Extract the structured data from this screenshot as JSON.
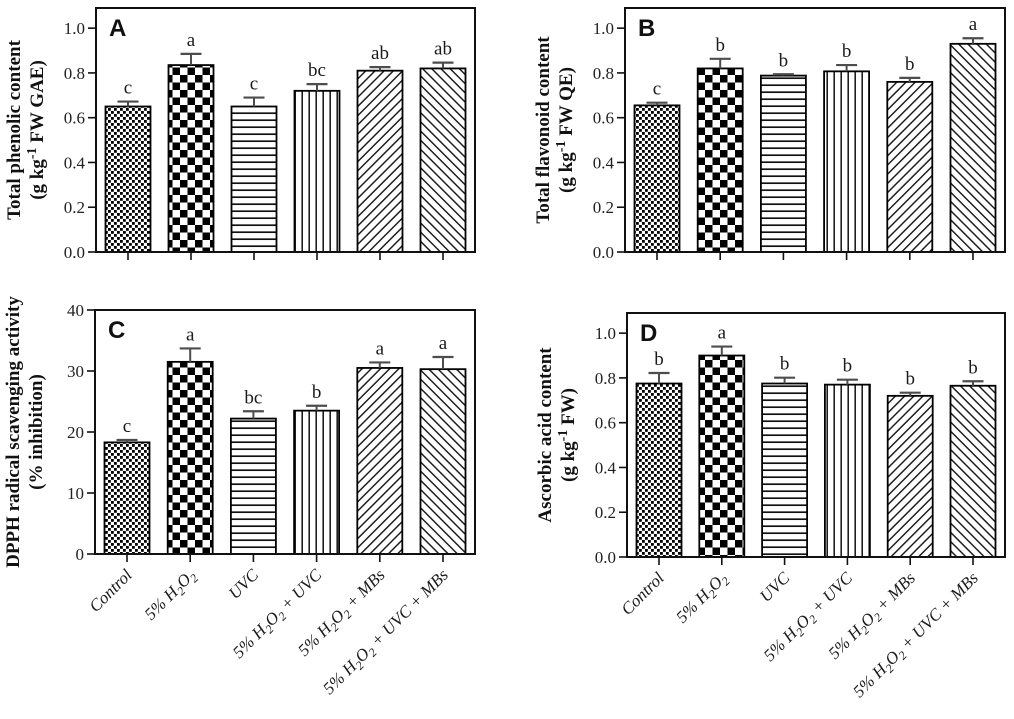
{
  "figure": {
    "background": "#ffffff",
    "categories": [
      {
        "key": "control",
        "text": "Control",
        "segments": [
          {
            "t": "Control"
          }
        ]
      },
      {
        "key": "5pct-h2o2",
        "text": "5% H₂O₂",
        "segments": [
          {
            "t": "5% H"
          },
          {
            "t": "2",
            "sub": true
          },
          {
            "t": "O"
          },
          {
            "t": "2",
            "sub": true
          }
        ]
      },
      {
        "key": "uvc",
        "text": "UVC",
        "segments": [
          {
            "t": "UVC"
          }
        ]
      },
      {
        "key": "5pct-h2o2-uvc",
        "text": "5% H₂O₂ + UVC",
        "segments": [
          {
            "t": "5% H"
          },
          {
            "t": "2",
            "sub": true
          },
          {
            "t": "O"
          },
          {
            "t": "2",
            "sub": true
          },
          {
            "t": " + UVC"
          }
        ]
      },
      {
        "key": "5pct-h2o2-mbs",
        "text": "5% H₂O₂ + MBs",
        "segments": [
          {
            "t": "5% H"
          },
          {
            "t": "2",
            "sub": true
          },
          {
            "t": "O"
          },
          {
            "t": "2",
            "sub": true
          },
          {
            "t": " + MBs"
          }
        ]
      },
      {
        "key": "5pct-h2o2-uvc-mbs",
        "text": "5% H₂O₂ + UVC + MBs",
        "segments": [
          {
            "t": "5% H"
          },
          {
            "t": "2",
            "sub": true
          },
          {
            "t": "O"
          },
          {
            "t": "2",
            "sub": true
          },
          {
            "t": " + UVC + MBs"
          }
        ]
      }
    ],
    "bar_patterns": [
      "fine-checker",
      "checkerboard",
      "horizontal-lines",
      "vertical-lines",
      "diagonal-up-hatch",
      "diagonal-down-hatch"
    ],
    "colors": {
      "background": "#ffffff",
      "axis": "#111111",
      "tick_label": "#222222",
      "bar_fill": "#ffffff",
      "bar_stroke": "#000000",
      "pattern_ink": "#111111",
      "error_bar": "#4d4d4d",
      "text": "#1a1a1a"
    }
  },
  "chart_data": [
    {
      "id": "A",
      "type": "bar",
      "panel_label": "A",
      "title": "",
      "xlabel": "",
      "ylabel_text": "Total phenolic content (g kg⁻¹ FW GAE)",
      "ylabel_lines": [
        {
          "text": "Total phenolic content",
          "segments": [
            {
              "t": "Total phenolic content"
            }
          ]
        },
        {
          "text": "(g kg⁻¹ FW GAE)",
          "segments": [
            {
              "t": "(g kg"
            },
            {
              "t": "-1",
              "sup": true
            },
            {
              "t": " FW GAE)"
            }
          ]
        }
      ],
      "ylim": [
        0,
        1.09
      ],
      "yticks": [
        0,
        0.2,
        0.4,
        0.6,
        0.8,
        1.0
      ],
      "ytick_labels": [
        "0.0",
        "0.2",
        "0.4",
        "0.6",
        "0.8",
        "1.0"
      ],
      "values": [
        0.65,
        0.835,
        0.65,
        0.72,
        0.81,
        0.82
      ],
      "errors": [
        0.022,
        0.05,
        0.04,
        0.03,
        0.016,
        0.026
      ],
      "sig_letters": [
        "c",
        "a",
        "c",
        "bc",
        "ab",
        "ab"
      ],
      "show_x_tick_labels": false,
      "grid": false,
      "legend": false
    },
    {
      "id": "B",
      "type": "bar",
      "panel_label": "B",
      "title": "",
      "xlabel": "",
      "ylabel_text": "Total flavonoid content (g kg⁻¹ FW QE)",
      "ylabel_lines": [
        {
          "text": "Total flavonoid content",
          "segments": [
            {
              "t": "Total flavonoid content"
            }
          ]
        },
        {
          "text": "(g kg⁻¹ FW QE)",
          "segments": [
            {
              "t": "(g kg"
            },
            {
              "t": "-1",
              "sup": true
            },
            {
              "t": " FW QE)"
            }
          ]
        }
      ],
      "ylim": [
        0,
        1.09
      ],
      "yticks": [
        0,
        0.2,
        0.4,
        0.6,
        0.8,
        1.0
      ],
      "ytick_labels": [
        "0.0",
        "0.2",
        "0.4",
        "0.6",
        "0.8",
        "1.0"
      ],
      "values": [
        0.655,
        0.82,
        0.788,
        0.807,
        0.76,
        0.93
      ],
      "errors": [
        0.012,
        0.043,
        0.006,
        0.028,
        0.018,
        0.025
      ],
      "sig_letters": [
        "c",
        "b",
        "b",
        "b",
        "b",
        "a"
      ],
      "show_x_tick_labels": false,
      "grid": false,
      "legend": false
    },
    {
      "id": "C",
      "type": "bar",
      "panel_label": "C",
      "title": "",
      "xlabel": "",
      "ylabel_text": "DPPH radical scavenging activity (% inhibition)",
      "ylabel_lines": [
        {
          "text": "DPPH radical scavenging activity",
          "segments": [
            {
              "t": "DPPH radical scavenging activity"
            }
          ]
        },
        {
          "text": "(% inhibition)",
          "segments": [
            {
              "t": "(% inhibition)"
            }
          ]
        }
      ],
      "ylim": [
        0,
        40
      ],
      "yticks": [
        0,
        10,
        20,
        30,
        40
      ],
      "ytick_labels": [
        "0",
        "10",
        "20",
        "30",
        "40"
      ],
      "values": [
        18.3,
        31.5,
        22.2,
        23.5,
        30.5,
        30.3
      ],
      "errors": [
        0.4,
        2.2,
        1.2,
        0.8,
        0.9,
        2.0
      ],
      "sig_letters": [
        "c",
        "a",
        "bc",
        "b",
        "a",
        "a"
      ],
      "show_x_tick_labels": true,
      "grid": false,
      "legend": false
    },
    {
      "id": "D",
      "type": "bar",
      "panel_label": "D",
      "title": "",
      "xlabel": "",
      "ylabel_text": "Ascorbic acid content (g kg⁻¹ FW)",
      "ylabel_lines": [
        {
          "text": "Ascorbic acid content",
          "segments": [
            {
              "t": "Ascorbic acid content"
            }
          ]
        },
        {
          "text": "(g kg⁻¹ FW)",
          "segments": [
            {
              "t": "(g kg"
            },
            {
              "t": "-1",
              "sup": true
            },
            {
              "t": " FW)"
            }
          ]
        }
      ],
      "ylim": [
        0,
        1.09
      ],
      "yticks": [
        0,
        0.2,
        0.4,
        0.6,
        0.8,
        1.0
      ],
      "ytick_labels": [
        "0.0",
        "0.2",
        "0.4",
        "0.6",
        "0.8",
        "1.0"
      ],
      "values": [
        0.775,
        0.9,
        0.775,
        0.77,
        0.72,
        0.765
      ],
      "errors": [
        0.047,
        0.04,
        0.026,
        0.022,
        0.014,
        0.02
      ],
      "sig_letters": [
        "b",
        "a",
        "b",
        "b",
        "b",
        "b"
      ],
      "show_x_tick_labels": true,
      "grid": false,
      "legend": false
    }
  ]
}
